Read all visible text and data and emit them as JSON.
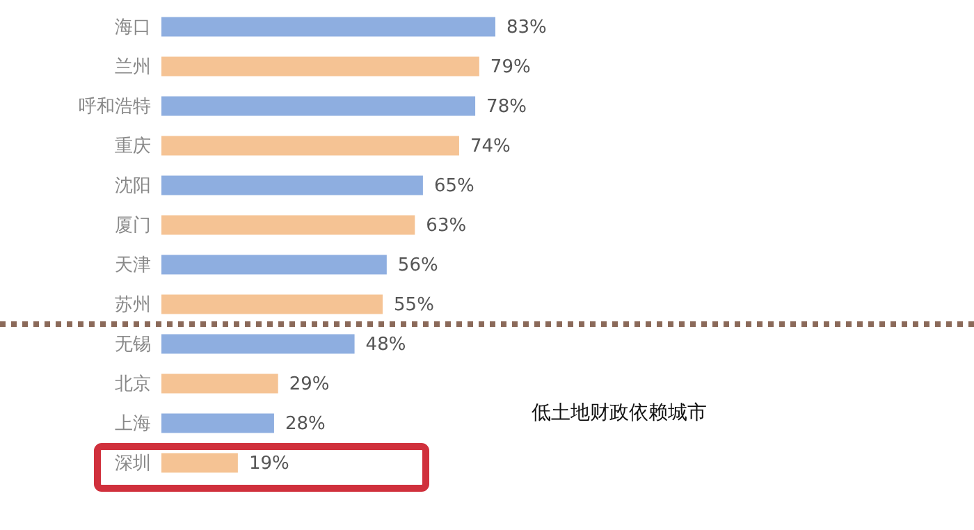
{
  "chart_data": {
    "type": "bar",
    "orientation": "horizontal",
    "categories": [
      "海口",
      "兰州",
      "呼和浩特",
      "重庆",
      "沈阳",
      "厦门",
      "天津",
      "苏州",
      "无锡",
      "北京",
      "上海",
      "深圳"
    ],
    "values": [
      83,
      79,
      78,
      74,
      65,
      63,
      56,
      55,
      48,
      29,
      28,
      19
    ],
    "colors": [
      "#8eaee0",
      "#f5c394",
      "#8eaee0",
      "#f5c394",
      "#8eaee0",
      "#f5c394",
      "#8eaee0",
      "#f5c394",
      "#8eaee0",
      "#f5c394",
      "#8eaee0",
      "#f5c394"
    ],
    "value_labels": [
      "83%",
      "79%",
      "78%",
      "74%",
      "65%",
      "63%",
      "56%",
      "55%",
      "48%",
      "29%",
      "28%",
      "19%"
    ],
    "ref_lines": [
      {
        "axis": "y",
        "value": "苏州",
        "label": null,
        "color": "#8b6a5a",
        "line_style": "dotted"
      }
    ],
    "annotations": [
      "低土地财政依赖城市"
    ],
    "grid": false
  }
}
